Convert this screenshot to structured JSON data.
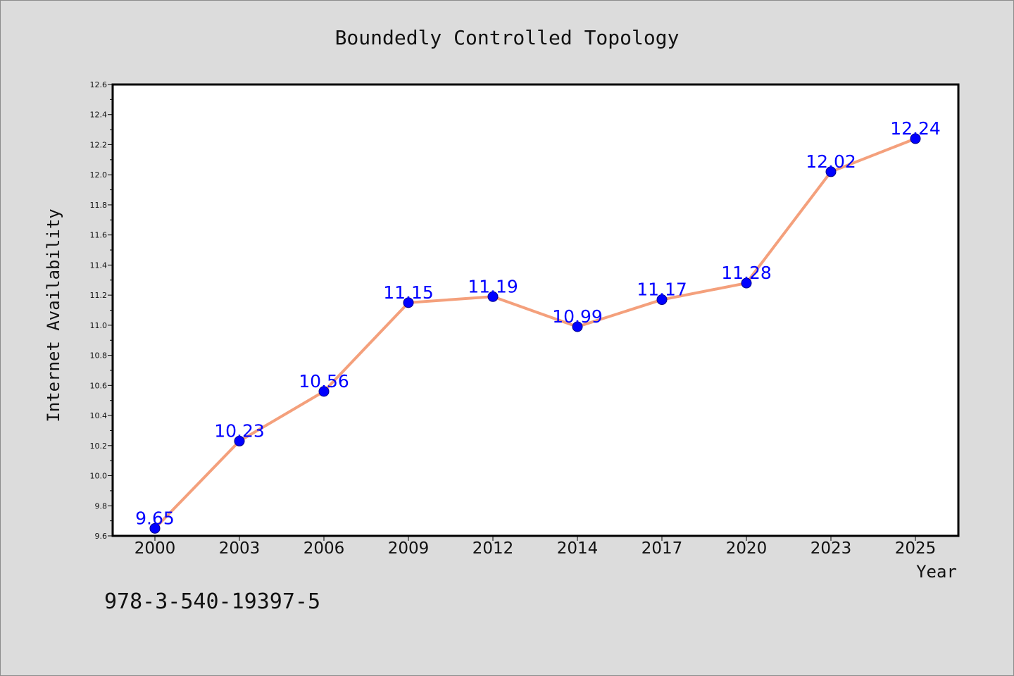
{
  "chart_data": {
    "type": "line",
    "title": "Boundedly Controlled Topology",
    "xlabel": "Year",
    "ylabel": "Internet Availability",
    "categories": [
      "2000",
      "2003",
      "2006",
      "2009",
      "2012",
      "2014",
      "2017",
      "2020",
      "2023",
      "2025"
    ],
    "series": [
      {
        "values": [
          9.65,
          10.23,
          10.56,
          11.15,
          11.19,
          10.99,
          11.17,
          11.28,
          12.02,
          12.24
        ],
        "line_color": "#f4a07c",
        "marker_color": "#0000ff"
      }
    ],
    "data_labels": [
      "9.65",
      "10.23",
      "10.56",
      "11.15",
      "11.19",
      "10.99",
      "11.17",
      "11.28",
      "12.02",
      "12.24"
    ],
    "ylim": [
      9.6,
      12.6
    ],
    "yticks": [
      "9.6",
      "9.8",
      "10.0",
      "10.2",
      "10.4",
      "10.6",
      "10.8",
      "11.0",
      "11.2",
      "11.4",
      "11.6",
      "11.8",
      "12.0",
      "12.2",
      "12.4",
      "12.6"
    ],
    "grid": false,
    "legend": "none",
    "annotation": "978-3-540-19397-5"
  }
}
